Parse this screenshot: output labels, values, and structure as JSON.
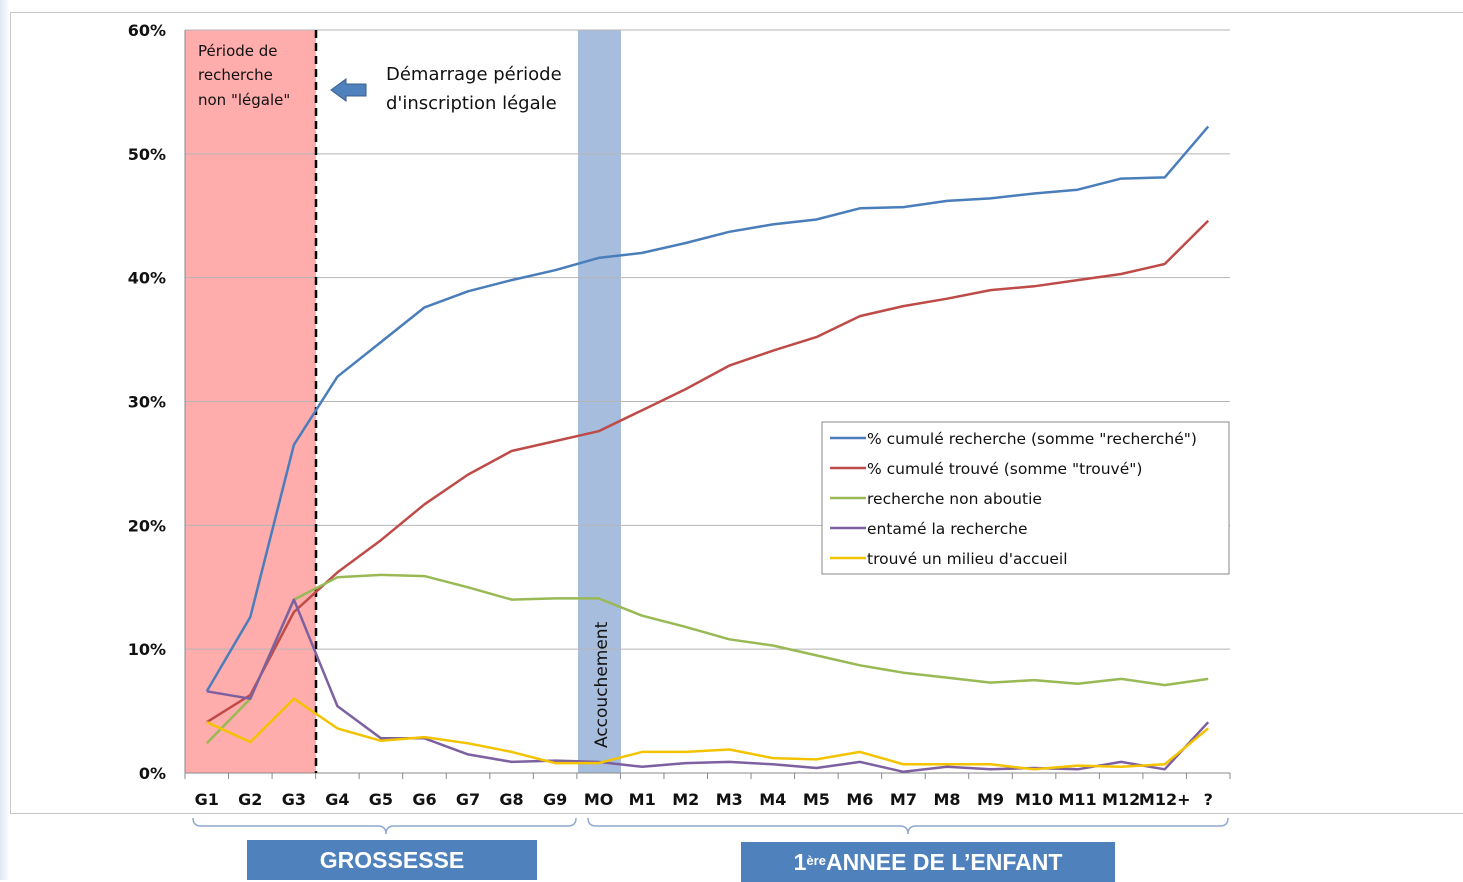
{
  "chart_data": {
    "type": "line",
    "categories": [
      "G1",
      "G2",
      "G3",
      "G4",
      "G5",
      "G6",
      "G7",
      "G8",
      "G9",
      "MO",
      "M1",
      "M2",
      "M3",
      "M4",
      "M5",
      "M6",
      "M7",
      "M8",
      "M9",
      "M10",
      "M11",
      "M12",
      "M12+",
      "?"
    ],
    "ylim": [
      0,
      60
    ],
    "yticks": [
      "0%",
      "10%",
      "20%",
      "30%",
      "40%",
      "50%",
      "60%"
    ],
    "ytick_values": [
      0,
      10,
      20,
      30,
      40,
      50,
      60
    ],
    "grid": true,
    "legend_position": "right-middle",
    "series": [
      {
        "name": "% cumulé recherche (somme \"recherché\")",
        "color": "#4a7ebb",
        "values": [
          6.6,
          12.6,
          26.5,
          32.0,
          34.8,
          37.6,
          38.9,
          39.8,
          40.6,
          41.6,
          42.0,
          42.8,
          43.7,
          44.3,
          44.7,
          45.6,
          45.7,
          46.2,
          46.4,
          46.8,
          47.1,
          48.0,
          48.1,
          52.2
        ]
      },
      {
        "name": "% cumulé trouvé (somme \"trouvé\")",
        "color": "#be4b48",
        "values": [
          4.1,
          6.3,
          13.0,
          16.2,
          18.8,
          21.7,
          24.1,
          26.0,
          26.8,
          27.6,
          29.3,
          31.0,
          32.9,
          34.1,
          35.2,
          36.9,
          37.7,
          38.3,
          39.0,
          39.3,
          39.8,
          40.3,
          41.1,
          44.6
        ]
      },
      {
        "name": "recherche non aboutie",
        "color": "#98b954",
        "values": [
          2.4,
          6.0,
          14.0,
          15.8,
          16.0,
          15.9,
          15.0,
          14.0,
          14.1,
          14.1,
          12.7,
          11.8,
          10.8,
          10.3,
          9.5,
          8.7,
          8.1,
          7.7,
          7.3,
          7.5,
          7.2,
          7.6,
          7.1,
          7.6
        ]
      },
      {
        "name": "entamé la recherche",
        "color": "#7d60a0",
        "values": [
          6.6,
          6.0,
          14.0,
          5.4,
          2.8,
          2.8,
          1.5,
          0.9,
          1.0,
          0.9,
          0.5,
          0.8,
          0.9,
          0.7,
          0.4,
          0.9,
          0.1,
          0.5,
          0.3,
          0.4,
          0.3,
          0.9,
          0.3,
          4.1
        ]
      },
      {
        "name": "trouvé un milieu d'accueil",
        "color": "#f3c300",
        "values": [
          4.1,
          2.5,
          6.0,
          3.6,
          2.6,
          2.9,
          2.4,
          1.7,
          0.8,
          0.8,
          1.7,
          1.7,
          1.9,
          1.2,
          1.1,
          1.7,
          0.7,
          0.7,
          0.7,
          0.3,
          0.6,
          0.5,
          0.7,
          3.6
        ]
      }
    ],
    "annotations": {
      "red_zone_text": [
        "Période de",
        "recherche",
        "non \"légale\""
      ],
      "start_text": [
        "Démarrage période",
        "d'inscription légale"
      ],
      "birth_text": "Accouchement"
    },
    "groups": {
      "pregnancy": "GROSSESSE",
      "first_year_sup": "ère",
      "first_year_pre": "1",
      "first_year_post": " ANNEE DE L’ENFANT"
    }
  }
}
